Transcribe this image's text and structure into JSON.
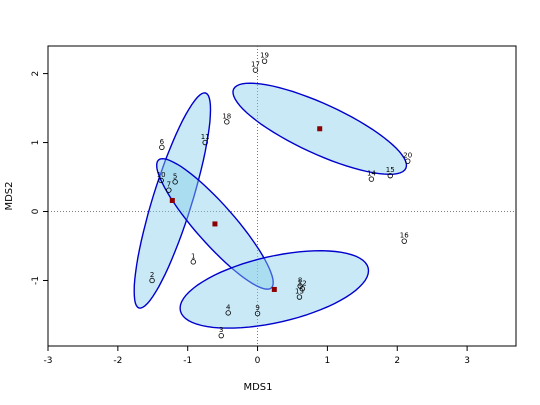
{
  "chart_data": {
    "type": "scatter",
    "xlabel": "MDS1",
    "ylabel": "MDS2",
    "xlim": [
      -3,
      3.7
    ],
    "ylim": [
      -1.95,
      2.4
    ],
    "x_ticks": [
      -3,
      -2,
      -1,
      0,
      1,
      2,
      3
    ],
    "y_ticks": [
      -1,
      0,
      1,
      2
    ],
    "x_tick_labels": [
      "-3",
      "-2",
      "-1",
      "0",
      "1",
      "2",
      "3"
    ],
    "y_tick_labels": [
      "-1",
      "0",
      "1",
      "2"
    ],
    "reference_lines": {
      "x": 0,
      "y": 0
    },
    "points": [
      {
        "label": "1",
        "x": -0.92,
        "y": -0.73
      },
      {
        "label": "2",
        "x": -1.51,
        "y": -1.0
      },
      {
        "label": "3",
        "x": -0.52,
        "y": -1.8
      },
      {
        "label": "4",
        "x": -0.42,
        "y": -1.47
      },
      {
        "label": "5",
        "x": -1.18,
        "y": 0.43
      },
      {
        "label": "6",
        "x": -1.37,
        "y": 0.93
      },
      {
        "label": "7",
        "x": -1.27,
        "y": 0.31
      },
      {
        "label": "8",
        "x": 0.61,
        "y": -1.08
      },
      {
        "label": "9",
        "x": 0.0,
        "y": -1.48
      },
      {
        "label": "10",
        "x": -1.38,
        "y": 0.45
      },
      {
        "label": "11",
        "x": -0.75,
        "y": 1.0
      },
      {
        "label": "12",
        "x": 0.64,
        "y": -1.12
      },
      {
        "label": "13",
        "x": 0.6,
        "y": -1.24
      },
      {
        "label": "14",
        "x": 1.63,
        "y": 0.47
      },
      {
        "label": "15",
        "x": 1.9,
        "y": 0.52
      },
      {
        "label": "16",
        "x": 2.1,
        "y": -0.43
      },
      {
        "label": "17",
        "x": -0.03,
        "y": 2.05
      },
      {
        "label": "18",
        "x": -0.44,
        "y": 1.3
      },
      {
        "label": "19",
        "x": 0.1,
        "y": 2.18
      },
      {
        "label": "20",
        "x": 2.15,
        "y": 0.73
      }
    ],
    "groups": [
      {
        "centroid_x": -1.22,
        "centroid_y": 0.16,
        "semi_major": 1.63,
        "semi_minor": 0.28,
        "angle_deg": 73
      },
      {
        "centroid_x": -0.61,
        "centroid_y": -0.18,
        "semi_major": 1.23,
        "semi_minor": 0.28,
        "angle_deg": -49
      },
      {
        "centroid_x": 0.24,
        "centroid_y": -1.13,
        "semi_major": 1.38,
        "semi_minor": 0.48,
        "angle_deg": 13
      },
      {
        "centroid_x": 0.89,
        "centroid_y": 1.2,
        "semi_major": 1.36,
        "semi_minor": 0.36,
        "angle_deg": -25
      }
    ],
    "colors": {
      "ellipse_fill": "#87CEEB",
      "ellipse_stroke": "#0000CD",
      "centroid": "#8B0000",
      "points": "#000000",
      "refline": "#555555"
    },
    "grid": false
  }
}
